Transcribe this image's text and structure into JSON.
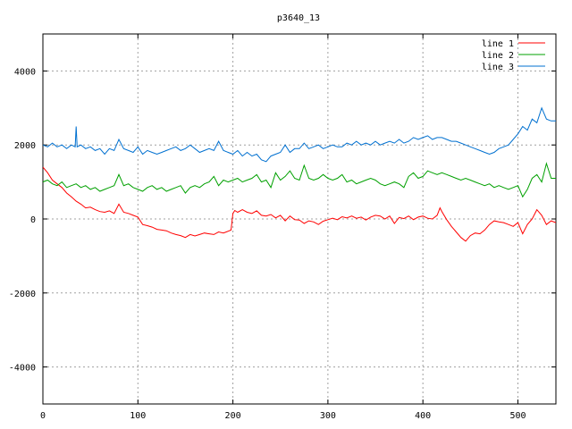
{
  "chart_data": {
    "type": "line",
    "title": "p3640_13",
    "xlabel": "",
    "ylabel": "",
    "xlim": [
      0,
      540
    ],
    "ylim": [
      -5000,
      5000
    ],
    "x_ticks": [
      0,
      100,
      200,
      300,
      400,
      500
    ],
    "y_ticks": [
      -4000,
      -2000,
      0,
      2000,
      4000
    ],
    "grid": true,
    "legend_position": "top-right",
    "series": [
      {
        "name": "line 1",
        "color": "#ff0000",
        "x": [
          0,
          5,
          10,
          15,
          20,
          25,
          30,
          35,
          40,
          45,
          50,
          55,
          60,
          65,
          70,
          75,
          80,
          85,
          90,
          95,
          100,
          105,
          110,
          115,
          120,
          125,
          130,
          135,
          140,
          145,
          150,
          155,
          160,
          165,
          170,
          175,
          180,
          185,
          190,
          195,
          198,
          200,
          202,
          205,
          210,
          215,
          220,
          225,
          230,
          235,
          240,
          245,
          250,
          255,
          260,
          265,
          270,
          275,
          280,
          285,
          290,
          295,
          300,
          305,
          310,
          315,
          320,
          325,
          330,
          335,
          340,
          345,
          350,
          355,
          360,
          365,
          370,
          375,
          380,
          385,
          390,
          395,
          400,
          405,
          410,
          415,
          418,
          420,
          425,
          430,
          435,
          440,
          445,
          450,
          455,
          460,
          465,
          470,
          475,
          480,
          485,
          490,
          495,
          500,
          505,
          510,
          515,
          520,
          525,
          530,
          535,
          540
        ],
        "y": [
          1400,
          1250,
          1050,
          950,
          850,
          700,
          600,
          480,
          400,
          300,
          320,
          250,
          200,
          180,
          220,
          150,
          400,
          180,
          150,
          100,
          50,
          -150,
          -180,
          -220,
          -280,
          -300,
          -320,
          -380,
          -420,
          -450,
          -500,
          -420,
          -460,
          -420,
          -380,
          -400,
          -420,
          -350,
          -380,
          -330,
          -300,
          150,
          230,
          180,
          250,
          180,
          150,
          220,
          100,
          80,
          120,
          30,
          100,
          -50,
          80,
          -20,
          -30,
          -120,
          -50,
          -80,
          -150,
          -60,
          -20,
          20,
          -20,
          60,
          30,
          80,
          20,
          50,
          -30,
          50,
          100,
          80,
          0,
          80,
          -120,
          40,
          10,
          80,
          -20,
          50,
          80,
          20,
          0,
          100,
          300,
          200,
          -20,
          -200,
          -350,
          -500,
          -600,
          -450,
          -380,
          -400,
          -300,
          -150,
          -50,
          -80,
          -100,
          -150,
          -200,
          -100,
          -400,
          -150,
          0,
          250,
          100,
          -150,
          -50,
          -100
        ]
      },
      {
        "name": "line 2",
        "color": "#00a000",
        "x": [
          0,
          5,
          10,
          15,
          20,
          25,
          30,
          35,
          40,
          45,
          50,
          55,
          60,
          65,
          70,
          75,
          80,
          85,
          90,
          95,
          100,
          105,
          110,
          115,
          120,
          125,
          130,
          135,
          140,
          145,
          150,
          155,
          160,
          165,
          170,
          175,
          180,
          185,
          190,
          195,
          200,
          205,
          210,
          215,
          220,
          225,
          230,
          235,
          240,
          245,
          250,
          255,
          260,
          265,
          270,
          275,
          280,
          285,
          290,
          295,
          300,
          305,
          310,
          315,
          320,
          325,
          330,
          335,
          340,
          345,
          350,
          355,
          360,
          365,
          370,
          375,
          380,
          385,
          390,
          395,
          400,
          405,
          410,
          415,
          420,
          425,
          430,
          435,
          440,
          445,
          450,
          455,
          460,
          465,
          470,
          475,
          480,
          485,
          490,
          495,
          500,
          505,
          510,
          515,
          520,
          525,
          530,
          535,
          540
        ],
        "y": [
          1000,
          1050,
          950,
          900,
          1000,
          850,
          900,
          950,
          850,
          900,
          800,
          850,
          750,
          800,
          850,
          900,
          1200,
          900,
          950,
          850,
          800,
          750,
          850,
          900,
          800,
          850,
          750,
          800,
          850,
          900,
          700,
          850,
          900,
          850,
          950,
          1000,
          1150,
          900,
          1050,
          1000,
          1050,
          1100,
          1000,
          1050,
          1100,
          1200,
          1000,
          1050,
          850,
          1250,
          1050,
          1150,
          1300,
          1100,
          1050,
          1450,
          1100,
          1050,
          1100,
          1200,
          1100,
          1050,
          1100,
          1200,
          1000,
          1050,
          950,
          1000,
          1050,
          1100,
          1050,
          950,
          900,
          950,
          1000,
          950,
          850,
          1150,
          1250,
          1100,
          1150,
          1300,
          1250,
          1200,
          1250,
          1200,
          1150,
          1100,
          1050,
          1100,
          1050,
          1000,
          950,
          900,
          950,
          850,
          900,
          850,
          800,
          850,
          900,
          600,
          800,
          1100,
          1200,
          1000,
          1500,
          1100,
          1100
        ]
      },
      {
        "name": "line 3",
        "color": "#0070d0",
        "x": [
          0,
          5,
          10,
          15,
          20,
          25,
          30,
          34,
          35,
          36,
          40,
          45,
          50,
          55,
          60,
          65,
          70,
          75,
          80,
          85,
          90,
          95,
          100,
          105,
          110,
          115,
          120,
          125,
          130,
          135,
          140,
          145,
          150,
          155,
          160,
          165,
          170,
          175,
          180,
          185,
          190,
          195,
          200,
          205,
          210,
          215,
          220,
          225,
          230,
          235,
          240,
          245,
          250,
          255,
          260,
          265,
          270,
          275,
          280,
          285,
          290,
          295,
          300,
          305,
          310,
          315,
          320,
          325,
          330,
          335,
          340,
          345,
          350,
          355,
          360,
          365,
          370,
          375,
          380,
          385,
          390,
          395,
          400,
          405,
          410,
          415,
          420,
          425,
          430,
          435,
          440,
          445,
          450,
          455,
          460,
          465,
          470,
          475,
          480,
          485,
          490,
          495,
          500,
          505,
          510,
          515,
          520,
          525,
          530,
          535,
          540
        ],
        "y": [
          2000,
          1950,
          2050,
          1950,
          2000,
          1900,
          2000,
          1950,
          2500,
          1950,
          2000,
          1900,
          1950,
          1850,
          1900,
          1750,
          1900,
          1850,
          2150,
          1900,
          1850,
          1800,
          1950,
          1750,
          1850,
          1800,
          1750,
          1800,
          1850,
          1900,
          1950,
          1850,
          1900,
          2000,
          1900,
          1800,
          1850,
          1900,
          1850,
          2100,
          1850,
          1800,
          1750,
          1850,
          1700,
          1800,
          1700,
          1750,
          1600,
          1550,
          1700,
          1750,
          1800,
          2000,
          1800,
          1900,
          1900,
          2050,
          1900,
          1950,
          2000,
          1900,
          1950,
          2000,
          1950,
          1950,
          2050,
          2000,
          2100,
          2000,
          2050,
          2000,
          2100,
          2000,
          2050,
          2100,
          2050,
          2150,
          2050,
          2100,
          2200,
          2150,
          2200,
          2250,
          2150,
          2200,
          2200,
          2150,
          2100,
          2100,
          2050,
          2000,
          1950,
          1900,
          1850,
          1800,
          1750,
          1800,
          1900,
          1950,
          2000,
          2150,
          2300,
          2500,
          2400,
          2700,
          2600,
          3000,
          2700,
          2650,
          2650
        ]
      }
    ]
  }
}
